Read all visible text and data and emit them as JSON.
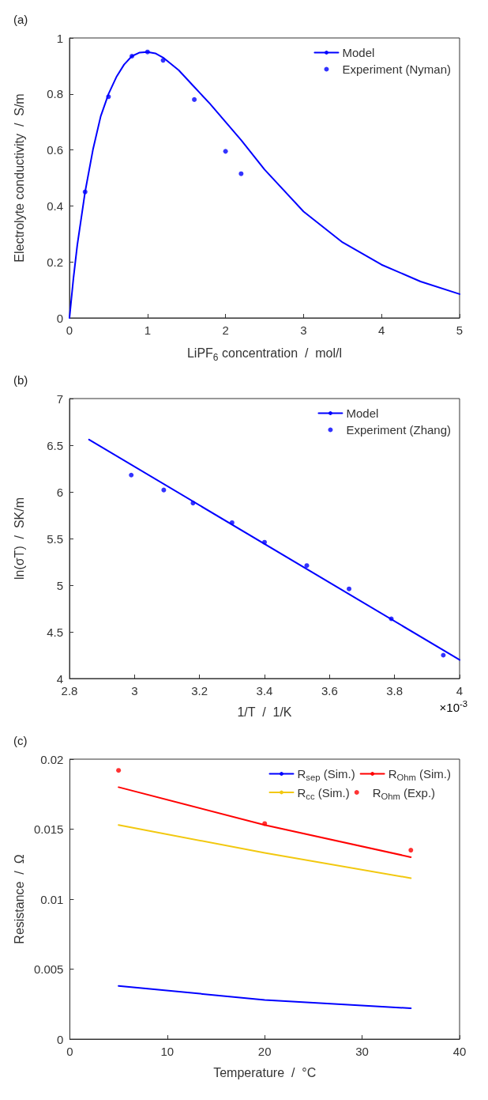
{
  "chart_data": [
    {
      "type": "line",
      "title": "(a)",
      "xlabel": "LiPF$_{6}$ concentration  /  mol/l",
      "ylabel": "Electrolyte conductivity  /  S/m",
      "xlim": [
        0,
        5
      ],
      "xticks": [
        0,
        1,
        2,
        3,
        4,
        5
      ],
      "ylim": [
        0,
        1
      ],
      "yticks": [
        0,
        0.2,
        0.4,
        0.6,
        0.8,
        1
      ],
      "grid": false,
      "legend": "top right",
      "series": [
        {
          "name": "Model",
          "type": "line",
          "color": "#0000ff",
          "marker": "none",
          "line_style": "solid",
          "x": [
            0,
            0.05,
            0.1,
            0.2,
            0.3,
            0.4,
            0.5,
            0.6,
            0.7,
            0.8,
            0.9,
            1.0,
            1.1,
            1.2,
            1.4,
            1.6,
            1.8,
            2.0,
            2.2,
            2.5,
            3.0,
            3.5,
            4.0,
            4.5,
            5.0
          ],
          "values": [
            0,
            0.14,
            0.26,
            0.45,
            0.6,
            0.72,
            0.8,
            0.86,
            0.905,
            0.935,
            0.948,
            0.95,
            0.945,
            0.93,
            0.885,
            0.825,
            0.765,
            0.7,
            0.635,
            0.53,
            0.38,
            0.27,
            0.19,
            0.13,
            0.085
          ]
        },
        {
          "name": "Experiment (Nyman)",
          "type": "scatter",
          "color": "#0000ff",
          "marker": "circle",
          "x": [
            0.2,
            0.5,
            0.8,
            1.0,
            1.2,
            1.6,
            2.0,
            2.2
          ],
          "values": [
            0.45,
            0.79,
            0.935,
            0.95,
            0.92,
            0.78,
            0.595,
            0.515
          ]
        }
      ]
    },
    {
      "type": "line",
      "title": "(b)",
      "xlabel": "1/T  /  1/K",
      "ylabel": "ln(σT)  /  SK/m",
      "annotations": [
        "×10$^{-3}$"
      ],
      "xlim": [
        2.8,
        4
      ],
      "xticks": [
        2.8,
        3,
        3.2,
        3.4,
        3.6,
        3.8,
        4
      ],
      "ylim": [
        4,
        7
      ],
      "yticks": [
        4,
        4.5,
        5,
        5.5,
        6,
        6.5,
        7
      ],
      "grid": false,
      "legend": "top right",
      "series": [
        {
          "name": "Model",
          "type": "line",
          "color": "#0000ff",
          "marker": "none",
          "line_style": "solid",
          "x": [
            2.86,
            4.0
          ],
          "values": [
            6.56,
            4.2
          ]
        },
        {
          "name": "Experiment (Zhang)",
          "type": "scatter",
          "color": "#0000ff",
          "marker": "circle",
          "x": [
            2.99,
            3.09,
            3.18,
            3.3,
            3.4,
            3.53,
            3.66,
            3.79,
            3.95
          ],
          "values": [
            6.18,
            6.02,
            5.88,
            5.67,
            5.46,
            5.21,
            4.96,
            4.64,
            4.25
          ]
        }
      ]
    },
    {
      "type": "line",
      "title": "(c)",
      "xlabel": "Temperature  /  °C",
      "ylabel": "Resistance  /  Ω",
      "xlim": [
        0,
        40
      ],
      "xticks": [
        0,
        10,
        20,
        30,
        40
      ],
      "ylim": [
        0,
        0.02
      ],
      "yticks": [
        0,
        0.005,
        0.01,
        0.015,
        0.02
      ],
      "grid": false,
      "legend": "top right",
      "series": [
        {
          "name": "R$_{sep}$ (Sim.)",
          "type": "line",
          "color": "#0000ff",
          "marker": "none",
          "line_style": "solid",
          "x": [
            5,
            20,
            35
          ],
          "values": [
            0.0038,
            0.0028,
            0.0022
          ]
        },
        {
          "name": "R$_{Ohm}$ (Sim.)",
          "type": "line",
          "color": "#ff0000",
          "marker": "none",
          "line_style": "solid",
          "x": [
            5,
            20,
            35
          ],
          "values": [
            0.018,
            0.0153,
            0.013
          ]
        },
        {
          "name": "R$_{cc}$ (Sim.)",
          "type": "line",
          "color": "#f2c80f",
          "marker": "none",
          "line_style": "solid",
          "x": [
            5,
            20,
            35
          ],
          "values": [
            0.0153,
            0.0133,
            0.0115
          ]
        },
        {
          "name": "R$_{Ohm}$ (Exp.)",
          "type": "scatter",
          "color": "#ff0000",
          "marker": "circle",
          "x": [
            5,
            20,
            35
          ],
          "values": [
            0.0192,
            0.0154,
            0.0135
          ]
        }
      ]
    }
  ]
}
